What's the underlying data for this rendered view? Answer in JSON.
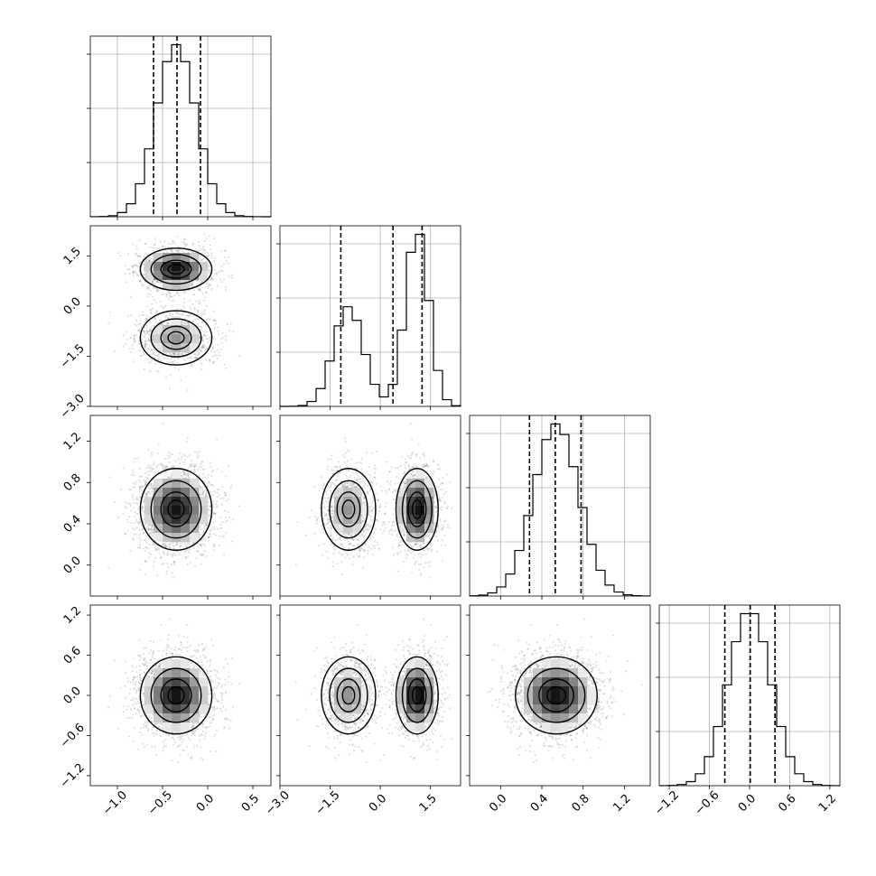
{
  "chart_data": {
    "type": "corner",
    "parameters": [
      {
        "index": 0,
        "range": [
          -1.3,
          0.7
        ],
        "ticks": [
          -1.0,
          -0.5,
          0.0,
          0.5
        ],
        "tick_labels": [
          "−1.0",
          "−0.5",
          "0.0",
          "0.5"
        ],
        "quantiles": [
          -0.6,
          -0.34,
          -0.08
        ],
        "mixture": [
          {
            "w": 1.0,
            "mu": -0.35,
            "sd": 0.22
          }
        ]
      },
      {
        "index": 1,
        "range": [
          -3.0,
          2.4
        ],
        "ticks": [
          -3.0,
          -1.5,
          0.0,
          1.5
        ],
        "tick_labels": [
          "−3.0",
          "−1.5",
          "0.0",
          "1.5"
        ],
        "quantiles": [
          -1.18,
          0.38,
          1.25
        ],
        "mixture": [
          {
            "w": 0.42,
            "mu": -0.95,
            "sd": 0.45
          },
          {
            "w": 0.58,
            "mu": 1.1,
            "sd": 0.35
          }
        ]
      },
      {
        "index": 2,
        "range": [
          -0.3,
          1.45
        ],
        "ticks": [
          0.0,
          0.4,
          0.8,
          1.2
        ],
        "tick_labels": [
          "0.0",
          "0.4",
          "0.8",
          "1.2"
        ],
        "quantiles": [
          0.28,
          0.53,
          0.78
        ],
        "mixture": [
          {
            "w": 1.0,
            "mu": 0.54,
            "sd": 0.22
          }
        ]
      },
      {
        "index": 3,
        "range": [
          -1.35,
          1.35
        ],
        "ticks": [
          -1.2,
          -0.6,
          0.0,
          0.6,
          1.2
        ],
        "tick_labels": [
          "−1.2",
          "−0.6",
          "0.0",
          "0.6",
          "1.2"
        ],
        "quantiles": [
          -0.37,
          0.01,
          0.38
        ],
        "mixture": [
          {
            "w": 1.0,
            "mu": 0.0,
            "sd": 0.32
          }
        ]
      }
    ],
    "diagonal": "1D histograms with 16/50/84% quantile lines",
    "off_diagonal": "2D scatter with contours",
    "grid": true,
    "xlabel": "",
    "ylabel": "",
    "title": ""
  }
}
